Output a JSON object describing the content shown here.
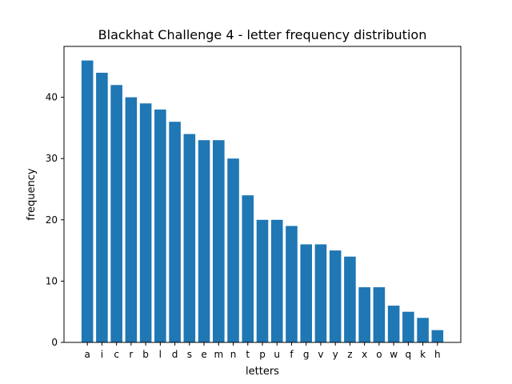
{
  "chart_data": {
    "type": "bar",
    "title": "Blackhat Challenge 4 - letter frequency distribution",
    "xlabel": "letters",
    "ylabel": "frequency",
    "categories": [
      "a",
      "i",
      "c",
      "r",
      "b",
      "l",
      "d",
      "s",
      "e",
      "m",
      "n",
      "t",
      "p",
      "u",
      "f",
      "g",
      "v",
      "y",
      "z",
      "x",
      "o",
      "w",
      "q",
      "k",
      "h"
    ],
    "values": [
      46,
      44,
      42,
      40,
      39,
      38,
      36,
      34,
      33,
      33,
      30,
      24,
      20,
      20,
      19,
      16,
      16,
      15,
      14,
      9,
      9,
      6,
      5,
      4,
      2
    ],
    "ylim": [
      0,
      48.3
    ],
    "yticks": [
      0,
      10,
      20,
      30,
      40
    ],
    "bar_color": "#1f77b4",
    "grid": false
  }
}
